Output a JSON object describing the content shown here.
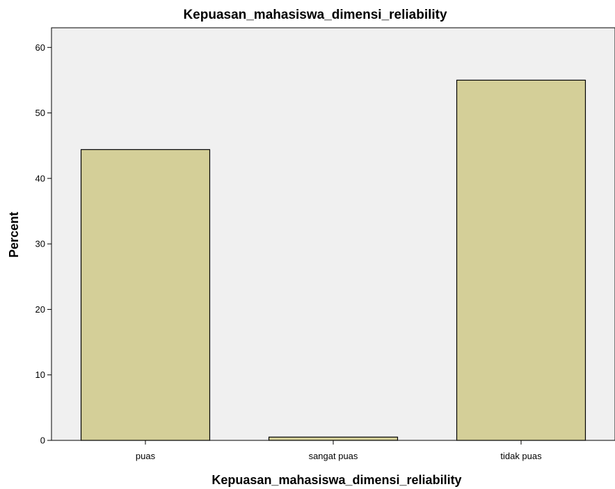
{
  "chart_data": {
    "type": "bar",
    "title": "Kepuasan_mahasiswa_dimensi_reliability",
    "xlabel": "Kepuasan_mahasiswa_dimensi_reliability",
    "ylabel": "Percent",
    "categories": [
      "puas",
      "sangat puas",
      "tidak puas"
    ],
    "values": [
      44.4,
      0.5,
      55.0
    ],
    "ylim": [
      0,
      63
    ],
    "yticks": [
      "0",
      "10",
      "20",
      "30",
      "40",
      "50",
      "60"
    ],
    "grid": false,
    "bar_color": "#d4cf98",
    "bar_border_color": "#000000",
    "plot_background": "#f0f0f0"
  }
}
